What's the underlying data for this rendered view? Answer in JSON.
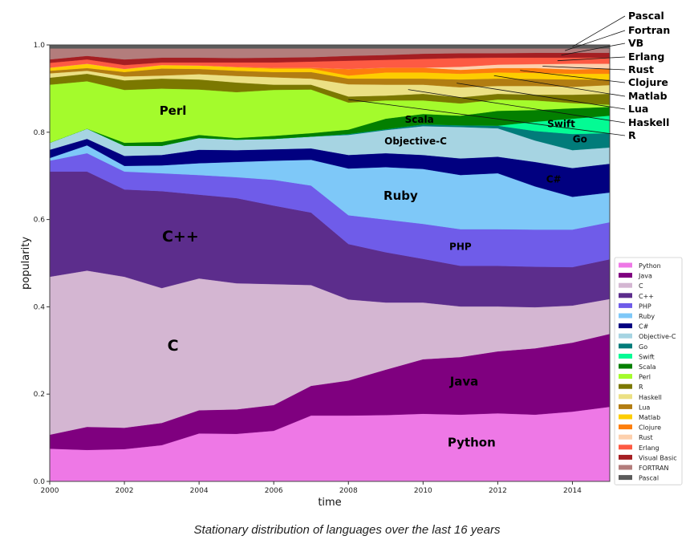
{
  "caption": "Stationary distribution of languages over the last 16 years",
  "chart_data": {
    "type": "area",
    "stacked": true,
    "title": "",
    "xlabel": "time",
    "ylabel": "popularity",
    "xlim": [
      2000,
      2015
    ],
    "ylim": [
      0.0,
      1.0
    ],
    "grid": false,
    "x": [
      2000,
      2001,
      2002,
      2003,
      2004,
      2005,
      2006,
      2007,
      2008,
      2009,
      2010,
      2011,
      2012,
      2013,
      2014,
      2015
    ],
    "xticks": [
      "2000",
      "2002",
      "2004",
      "2006",
      "2008",
      "2010",
      "2012",
      "2014"
    ],
    "yticks": [
      "0.0",
      "0.2",
      "0.4",
      "0.6",
      "0.8",
      "1.0"
    ],
    "legend_position": "right",
    "series": [
      {
        "name": "Python",
        "color": "#ee78e6",
        "values": [
          0.075,
          0.072,
          0.074,
          0.083,
          0.11,
          0.109,
          0.116,
          0.151,
          0.151,
          0.152,
          0.155,
          0.153,
          0.156,
          0.153,
          0.16,
          0.171
        ]
      },
      {
        "name": "Java",
        "color": "#7f007f",
        "values": [
          0.032,
          0.053,
          0.049,
          0.051,
          0.053,
          0.056,
          0.059,
          0.068,
          0.08,
          0.104,
          0.125,
          0.132,
          0.142,
          0.152,
          0.158,
          0.167
        ]
      },
      {
        "name": "C",
        "color": "#d4b6d2",
        "values": [
          0.362,
          0.358,
          0.346,
          0.309,
          0.302,
          0.289,
          0.277,
          0.231,
          0.186,
          0.154,
          0.13,
          0.116,
          0.103,
          0.094,
          0.085,
          0.08
        ]
      },
      {
        "name": "C++",
        "color": "#5c2d8c",
        "values": [
          0.241,
          0.227,
          0.2,
          0.222,
          0.192,
          0.195,
          0.18,
          0.166,
          0.127,
          0.115,
          0.1,
          0.093,
          0.093,
          0.093,
          0.088,
          0.091
        ]
      },
      {
        "name": "PHP",
        "color": "#6f5ce9",
        "values": [
          0.025,
          0.042,
          0.041,
          0.041,
          0.045,
          0.048,
          0.059,
          0.062,
          0.066,
          0.075,
          0.08,
          0.084,
          0.084,
          0.085,
          0.086,
          0.085
        ]
      },
      {
        "name": "Ruby",
        "color": "#7ec8f8",
        "values": [
          0.006,
          0.018,
          0.013,
          0.018,
          0.027,
          0.035,
          0.044,
          0.059,
          0.107,
          0.12,
          0.126,
          0.124,
          0.128,
          0.099,
          0.075,
          0.068
        ]
      },
      {
        "name": "C#",
        "color": "#010080",
        "values": [
          0.019,
          0.015,
          0.023,
          0.024,
          0.031,
          0.027,
          0.026,
          0.026,
          0.031,
          0.032,
          0.032,
          0.038,
          0.038,
          0.056,
          0.066,
          0.066
        ]
      },
      {
        "name": "Objective-C",
        "color": "#a6d4e2",
        "values": [
          0.016,
          0.023,
          0.023,
          0.021,
          0.027,
          0.024,
          0.024,
          0.027,
          0.046,
          0.053,
          0.066,
          0.072,
          0.065,
          0.049,
          0.041,
          0.037
        ]
      },
      {
        "name": "Go",
        "color": "#017c7a",
        "values": [
          0,
          0,
          0,
          0,
          0,
          0,
          0,
          0,
          0.002,
          0.002,
          0.004,
          0.004,
          0.006,
          0.022,
          0.037,
          0.033
        ]
      },
      {
        "name": "Swift",
        "color": "#04fb94",
        "values": [
          0,
          0,
          0,
          0,
          0,
          0,
          0,
          0,
          0,
          0,
          0,
          0,
          0,
          0.021,
          0.035,
          0.04
        ]
      },
      {
        "name": "Scala",
        "color": "#037f00",
        "values": [
          0,
          0,
          0.007,
          0.009,
          0.007,
          0.004,
          0.007,
          0.008,
          0.01,
          0.024,
          0.024,
          0.022,
          0.034,
          0.027,
          0.024,
          0.02
        ]
      },
      {
        "name": "Perl",
        "color": "#a4fb2c",
        "values": [
          0.133,
          0.109,
          0.121,
          0.122,
          0.104,
          0.105,
          0.105,
          0.1,
          0.062,
          0.042,
          0.031,
          0.028,
          0.026,
          0.022,
          0.012,
          0.005
        ]
      },
      {
        "name": "R",
        "color": "#7b7800",
        "values": [
          0.016,
          0.017,
          0.022,
          0.023,
          0.023,
          0.022,
          0.012,
          0.011,
          0.014,
          0.011,
          0.015,
          0.014,
          0.013,
          0.013,
          0.019,
          0.025
        ]
      },
      {
        "name": "Haskell",
        "color": "#ebe084",
        "values": [
          0.01,
          0.007,
          0.009,
          0.007,
          0.012,
          0.015,
          0.017,
          0.014,
          0.028,
          0.025,
          0.021,
          0.023,
          0.018,
          0.02,
          0.018,
          0.02
        ]
      },
      {
        "name": "Lua",
        "color": "#b27d12",
        "values": [
          0.006,
          0.006,
          0.01,
          0.016,
          0.012,
          0.012,
          0.012,
          0.015,
          0.013,
          0.014,
          0.014,
          0.018,
          0.017,
          0.016,
          0.017,
          0.013
        ]
      },
      {
        "name": "Matlab",
        "color": "#fdcd00",
        "values": [
          0.007,
          0.01,
          0.007,
          0.008,
          0.008,
          0.008,
          0.008,
          0.008,
          0.007,
          0.014,
          0.014,
          0.013,
          0.014,
          0.014,
          0.013,
          0.013
        ]
      },
      {
        "name": "Clojure",
        "color": "#fd7e0c",
        "values": [
          0,
          0,
          0,
          0,
          0,
          0.001,
          0.002,
          0.002,
          0.015,
          0.011,
          0.011,
          0.009,
          0.01,
          0.011,
          0.01,
          0.012
        ]
      },
      {
        "name": "Rust",
        "color": "#fdd0ad",
        "values": [
          0,
          0,
          0,
          0,
          0,
          0,
          0,
          0,
          0,
          0,
          0,
          0.007,
          0.008,
          0.009,
          0.013,
          0.011
        ]
      },
      {
        "name": "Erlang",
        "color": "#fd5a43",
        "values": [
          0.011,
          0.01,
          0.009,
          0.006,
          0.007,
          0.01,
          0.012,
          0.014,
          0.019,
          0.018,
          0.02,
          0.02,
          0.016,
          0.015,
          0.014,
          0.014
        ]
      },
      {
        "name": "Visual Basic",
        "color": "#a51e22",
        "values": [
          0.008,
          0.008,
          0.013,
          0.011,
          0.011,
          0.01,
          0.011,
          0.01,
          0.011,
          0.011,
          0.012,
          0.011,
          0.01,
          0.011,
          0.011,
          0.011
        ]
      },
      {
        "name": "FORTRAN",
        "color": "#b37d7c",
        "values": [
          0.025,
          0.017,
          0.025,
          0.021,
          0.021,
          0.022,
          0.021,
          0.02,
          0.017,
          0.015,
          0.012,
          0.011,
          0.011,
          0.01,
          0.01,
          0.01
        ]
      },
      {
        "name": "Pascal",
        "color": "#5b5b5b",
        "values": [
          0.008,
          0.008,
          0.008,
          0.008,
          0.008,
          0.008,
          0.008,
          0.008,
          0.008,
          0.008,
          0.008,
          0.008,
          0.008,
          0.008,
          0.008,
          0.008
        ]
      }
    ],
    "area_labels": [
      {
        "text": "Python",
        "x": 2011.3,
        "y": 0.08,
        "color": "#000000",
        "size": "big"
      },
      {
        "text": "Java",
        "x": 2011.1,
        "y": 0.22,
        "color": "#000000",
        "size": "big"
      },
      {
        "text": "C",
        "x": 2003.3,
        "y": 0.3,
        "color": "#000000",
        "size": "huge"
      },
      {
        "text": "C++",
        "x": 2003.5,
        "y": 0.55,
        "color": "#000000",
        "size": "huge"
      },
      {
        "text": "PHP",
        "x": 2011.0,
        "y": 0.53,
        "color": "#000000",
        "size": "small"
      },
      {
        "text": "Ruby",
        "x": 2009.4,
        "y": 0.645,
        "color": "#000000",
        "size": "big"
      },
      {
        "text": "C#",
        "x": 2013.5,
        "y": 0.685,
        "color": "#ffffff",
        "size": "small"
      },
      {
        "text": "Objective-C",
        "x": 2009.8,
        "y": 0.772,
        "color": "#000000",
        "size": "small"
      },
      {
        "text": "Go",
        "x": 2014.2,
        "y": 0.777,
        "color": "#000000",
        "size": "small"
      },
      {
        "text": "Swift",
        "x": 2013.7,
        "y": 0.812,
        "color": "#000000",
        "size": "small"
      },
      {
        "text": "Scala",
        "x": 2009.9,
        "y": 0.822,
        "color": "#ffffff",
        "size": "small"
      },
      {
        "text": "Perl",
        "x": 2003.3,
        "y": 0.84,
        "color": "#000000",
        "size": "big"
      }
    ],
    "annotations": [
      {
        "text": "Pascal",
        "series": "Pascal",
        "x": 2014.0
      },
      {
        "text": "Fortran",
        "series": "FORTRAN",
        "x": 2013.8
      },
      {
        "text": "VB",
        "series": "Visual Basic",
        "x": 2013.7
      },
      {
        "text": "Erlang",
        "series": "Erlang",
        "x": 2013.6
      },
      {
        "text": "Rust",
        "series": "Rust",
        "x": 2013.2
      },
      {
        "text": "Clojure",
        "series": "Clojure",
        "x": 2012.6
      },
      {
        "text": "Matlab",
        "series": "Matlab",
        "x": 2011.9
      },
      {
        "text": "Lua",
        "series": "Lua",
        "x": 2010.9
      },
      {
        "text": "Haskell",
        "series": "Haskell",
        "x": 2009.6
      },
      {
        "text": "R",
        "series": "R",
        "x": 2008.0
      }
    ]
  }
}
